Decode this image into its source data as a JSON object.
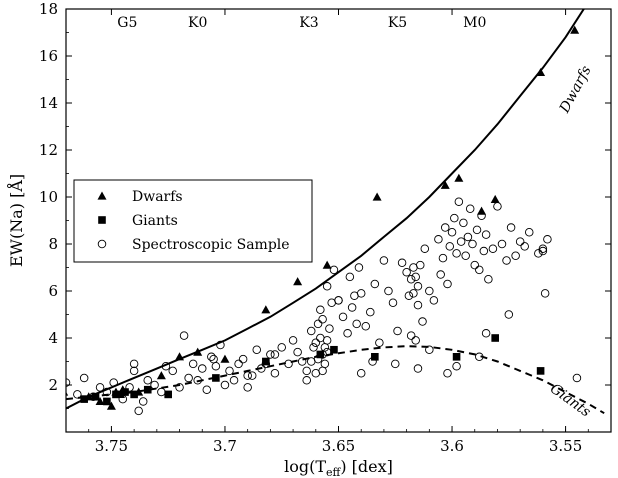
{
  "chart_data": {
    "type": "scatter",
    "xlabel": "log(T",
    "xlabel_sub": "eff",
    "xlabel_suffix": ") [dex]",
    "ylabel": "EW(Na) [Å]",
    "xlim": [
      3.77,
      3.53
    ],
    "ylim": [
      0,
      18
    ],
    "x_reversed": true,
    "x_ticks": [
      3.75,
      3.7,
      3.65,
      3.6,
      3.55
    ],
    "x_tick_labels": [
      "3.75",
      "3.7",
      "3.65",
      "3.6",
      "3.55"
    ],
    "y_ticks": [
      2,
      4,
      6,
      8,
      10,
      12,
      14,
      16,
      18
    ],
    "y_tick_labels": [
      "2",
      "4",
      "6",
      "8",
      "10",
      "12",
      "14",
      "16",
      "18"
    ],
    "grid": false,
    "legend_placement": "center-left",
    "spectral_types": [
      {
        "label": "G5",
        "x": 3.743
      },
      {
        "label": "K0",
        "x": 3.712
      },
      {
        "label": "K3",
        "x": 3.663
      },
      {
        "label": "K5",
        "x": 3.624
      },
      {
        "label": "M0",
        "x": 3.59
      }
    ],
    "series": [
      {
        "name": "Dwarfs",
        "marker": "triangle",
        "x": [
          3.771,
          3.76,
          3.755,
          3.75,
          3.748,
          3.746,
          3.745,
          3.738,
          3.728,
          3.72,
          3.712,
          3.7,
          3.682,
          3.668,
          3.655,
          3.633,
          3.603,
          3.597,
          3.587,
          3.581,
          3.561,
          3.546
        ],
        "y": [
          1.7,
          1.5,
          1.3,
          1.1,
          1.7,
          1.6,
          1.8,
          1.7,
          2.4,
          3.2,
          3.4,
          3.1,
          5.2,
          6.4,
          7.1,
          10.0,
          10.5,
          10.8,
          9.4,
          9.9,
          15.3,
          17.1
        ]
      },
      {
        "name": "Giants",
        "marker": "square",
        "x": [
          3.762,
          3.757,
          3.752,
          3.748,
          3.744,
          3.74,
          3.734,
          3.725,
          3.704,
          3.682,
          3.658,
          3.652,
          3.634,
          3.598,
          3.581,
          3.561
        ],
        "y": [
          1.4,
          1.5,
          1.3,
          1.6,
          1.7,
          1.6,
          1.8,
          1.6,
          2.3,
          3.0,
          3.3,
          3.5,
          3.2,
          3.2,
          4.0,
          2.6
        ]
      },
      {
        "name": "Spectroscopic Sample",
        "marker": "open-circle",
        "x": [
          3.77,
          3.765,
          3.762,
          3.758,
          3.755,
          3.752,
          3.749,
          3.745,
          3.742,
          3.74,
          3.738,
          3.736,
          3.734,
          3.731,
          3.728,
          3.726,
          3.723,
          3.72,
          3.718,
          3.716,
          3.714,
          3.712,
          3.71,
          3.708,
          3.706,
          3.704,
          3.702,
          3.7,
          3.698,
          3.696,
          3.694,
          3.692,
          3.69,
          3.688,
          3.686,
          3.684,
          3.682,
          3.68,
          3.678,
          3.675,
          3.672,
          3.67,
          3.668,
          3.666,
          3.664,
          3.662,
          3.661,
          3.66,
          3.66,
          3.659,
          3.659,
          3.658,
          3.658,
          3.657,
          3.657,
          3.656,
          3.656,
          3.655,
          3.655,
          3.654,
          3.653,
          3.652,
          3.65,
          3.648,
          3.646,
          3.645,
          3.644,
          3.643,
          3.642,
          3.641,
          3.64,
          3.638,
          3.636,
          3.634,
          3.632,
          3.63,
          3.628,
          3.626,
          3.624,
          3.622,
          3.62,
          3.619,
          3.618,
          3.618,
          3.617,
          3.617,
          3.616,
          3.616,
          3.615,
          3.615,
          3.614,
          3.613,
          3.612,
          3.61,
          3.608,
          3.606,
          3.605,
          3.604,
          3.603,
          3.602,
          3.601,
          3.6,
          3.599,
          3.598,
          3.597,
          3.596,
          3.595,
          3.594,
          3.593,
          3.592,
          3.591,
          3.59,
          3.589,
          3.588,
          3.587,
          3.586,
          3.585,
          3.584,
          3.582,
          3.58,
          3.578,
          3.576,
          3.574,
          3.572,
          3.57,
          3.568,
          3.566,
          3.562,
          3.56,
          3.559,
          3.558,
          3.545,
          3.64,
          3.625,
          3.602,
          3.588,
          3.74,
          3.705,
          3.69,
          3.678,
          3.664,
          3.655,
          3.635,
          3.615,
          3.61,
          3.598,
          3.585,
          3.575,
          3.56,
          3.65,
          3.662,
          3.657
        ],
        "y": [
          2.1,
          1.6,
          2.3,
          1.5,
          1.9,
          1.7,
          2.1,
          1.4,
          1.9,
          2.9,
          0.9,
          1.3,
          2.2,
          2.0,
          1.7,
          2.8,
          2.6,
          1.9,
          4.1,
          2.3,
          2.9,
          2.2,
          2.7,
          1.8,
          3.2,
          2.8,
          3.7,
          2.0,
          2.6,
          2.2,
          2.9,
          3.1,
          1.9,
          2.4,
          3.5,
          2.7,
          2.9,
          3.3,
          2.5,
          3.6,
          2.9,
          3.9,
          3.4,
          3.0,
          2.6,
          4.3,
          3.6,
          3.8,
          2.5,
          4.6,
          3.1,
          5.2,
          4.0,
          3.3,
          4.8,
          2.9,
          3.6,
          6.2,
          3.9,
          4.4,
          5.5,
          6.9,
          5.6,
          4.9,
          4.2,
          6.6,
          5.3,
          5.8,
          4.6,
          7.0,
          5.9,
          4.5,
          5.1,
          6.3,
          3.8,
          7.3,
          6.0,
          5.5,
          4.3,
          7.2,
          6.8,
          5.8,
          6.5,
          4.1,
          7.0,
          5.9,
          6.6,
          3.9,
          6.2,
          5.4,
          7.1,
          4.7,
          7.8,
          6.0,
          5.6,
          8.2,
          6.7,
          7.4,
          8.7,
          6.3,
          7.9,
          8.5,
          9.1,
          7.6,
          9.8,
          8.1,
          8.9,
          7.5,
          8.3,
          9.5,
          8.0,
          7.1,
          8.6,
          6.9,
          9.2,
          7.7,
          8.4,
          6.5,
          7.8,
          9.6,
          8.0,
          7.3,
          8.7,
          7.5,
          8.1,
          7.9,
          8.5,
          7.6,
          7.8,
          5.9,
          8.2,
          2.3,
          2.5,
          2.9,
          2.5,
          3.2,
          2.6,
          3.1,
          2.4,
          3.3,
          2.2,
          3.4,
          3.0,
          2.7,
          3.5,
          2.8,
          4.2,
          5.0,
          7.7,
          5.6,
          3.0,
          2.6
        ],
        "y_extra_note": ""
      }
    ],
    "curves": [
      {
        "name": "Dwarfs",
        "style": "solid",
        "x": [
          3.77,
          3.76,
          3.75,
          3.74,
          3.73,
          3.72,
          3.71,
          3.7,
          3.69,
          3.68,
          3.67,
          3.66,
          3.65,
          3.64,
          3.63,
          3.62,
          3.61,
          3.6,
          3.59,
          3.58,
          3.57,
          3.56,
          3.55,
          3.542
        ],
        "y": [
          1.0,
          1.5,
          1.9,
          2.3,
          2.7,
          3.1,
          3.5,
          3.9,
          4.4,
          4.9,
          5.5,
          6.1,
          6.8,
          7.5,
          8.3,
          9.1,
          10.0,
          11.0,
          12.0,
          13.1,
          14.3,
          15.5,
          16.8,
          18.0
        ]
      },
      {
        "name": "Giants",
        "style": "dashed",
        "x": [
          3.77,
          3.76,
          3.75,
          3.74,
          3.73,
          3.72,
          3.71,
          3.7,
          3.69,
          3.68,
          3.67,
          3.66,
          3.65,
          3.64,
          3.63,
          3.62,
          3.61,
          3.6,
          3.59,
          3.58,
          3.57,
          3.56,
          3.55,
          3.54,
          3.533
        ],
        "y": [
          1.4,
          1.5,
          1.6,
          1.7,
          1.85,
          2.0,
          2.2,
          2.4,
          2.6,
          2.8,
          3.0,
          3.2,
          3.35,
          3.5,
          3.6,
          3.65,
          3.62,
          3.5,
          3.3,
          3.0,
          2.6,
          2.2,
          1.7,
          1.2,
          0.8
        ]
      }
    ],
    "curve_labels": [
      {
        "text": "Dwarfs",
        "x": 3.544,
        "y": 14.5,
        "rotate": -62
      },
      {
        "text": "Giants",
        "x": 3.549,
        "y": 1.2,
        "rotate": 36
      }
    ],
    "legend": {
      "entries": [
        {
          "label": "Dwarfs",
          "marker": "triangle"
        },
        {
          "label": "Giants",
          "marker": "square"
        },
        {
          "label": "Spectroscopic Sample",
          "marker": "open-circle"
        }
      ]
    }
  }
}
